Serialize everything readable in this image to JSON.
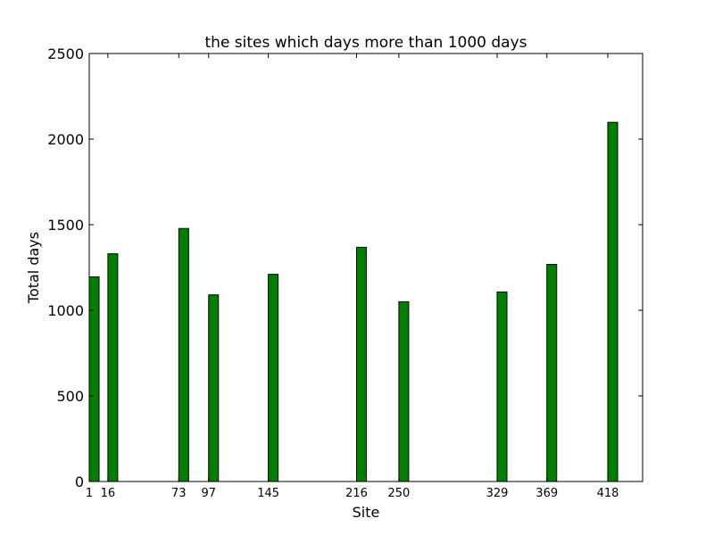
{
  "chart_data": {
    "type": "bar",
    "title": "the sites which days more than 1000 days",
    "xlabel": "Site",
    "ylabel": "Total days",
    "x": [
      1,
      16,
      73,
      97,
      145,
      216,
      250,
      329,
      369,
      418
    ],
    "values": [
      1195,
      1330,
      1478,
      1090,
      1210,
      1368,
      1050,
      1107,
      1268,
      2098
    ],
    "xtick_labels": [
      "1",
      "16",
      "73",
      "97",
      "145",
      "216",
      "250",
      "329",
      "369",
      "418"
    ],
    "ylim": [
      0,
      2500
    ],
    "xlim": [
      1,
      446
    ],
    "yticks": [
      0,
      500,
      1000,
      1500,
      2000,
      2500
    ],
    "ytick_labels": [
      "0",
      "500",
      "1000",
      "1500",
      "2000",
      "2500"
    ],
    "bar_color": "#008000",
    "grid": false,
    "legend": "none"
  }
}
